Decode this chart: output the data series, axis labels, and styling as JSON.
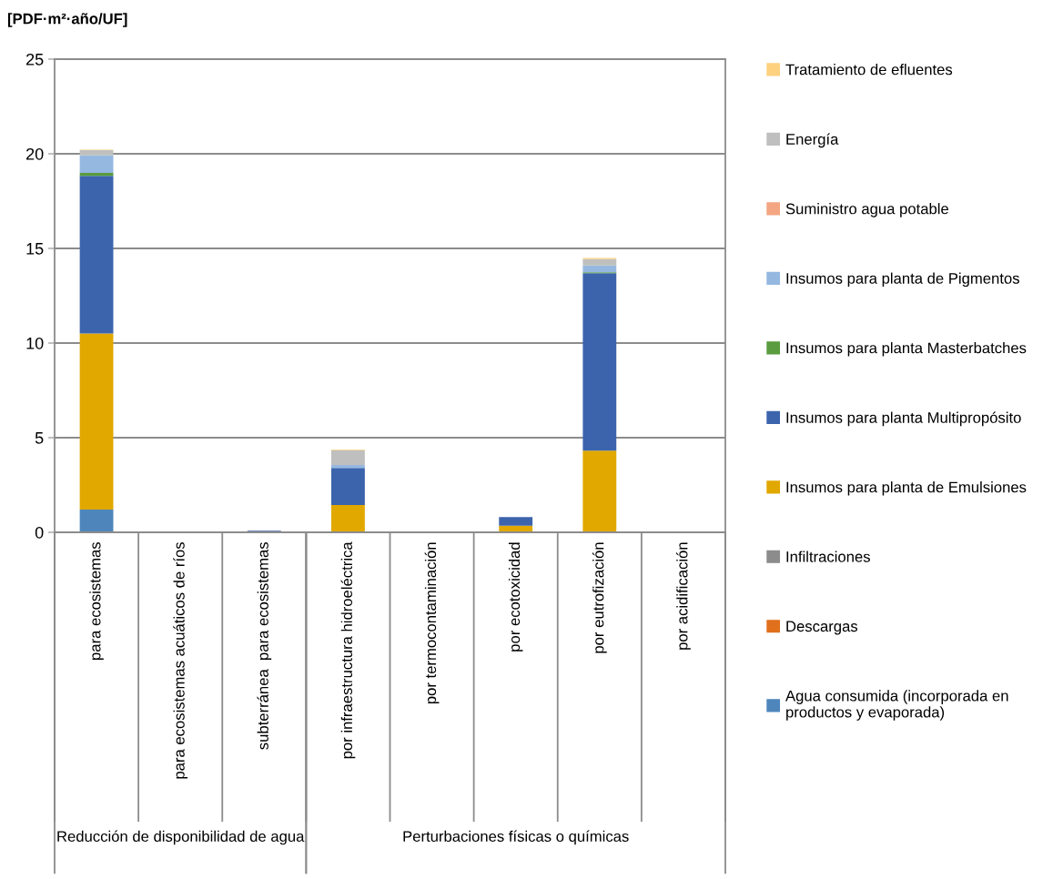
{
  "chart_data": {
    "type": "bar",
    "stacked": true,
    "ylabel": "[PDF·m²·año/UF]",
    "categories": [
      "para ecosistemas",
      "para ecosistemas acuáticos de ríos",
      "subterránea  para ecosistemas",
      "por infraestructura hidroeléctrica",
      "por termocontaminación",
      "por ecotoxicidad",
      "por eutrofización",
      "por acidificación"
    ],
    "annotations": [
      "Reducción de disponibilidad de agua",
      "Perturbaciones físicas o químicas"
    ],
    "series": [
      {
        "name": "Agua consumida (incorporada en productos y evaporada)",
        "color": "#4e86bc",
        "values": [
          1.2,
          0,
          0,
          0,
          0,
          0,
          0,
          0
        ]
      },
      {
        "name": "Descargas",
        "color": "#e0701c",
        "values": [
          0,
          0,
          0,
          0,
          0,
          0,
          0.03,
          0
        ]
      },
      {
        "name": "Infiltraciones",
        "color": "#8c8c8c",
        "values": [
          0,
          0,
          0,
          0,
          0,
          0,
          0,
          0
        ]
      },
      {
        "name": "Insumos para planta de Emulsiones",
        "color": "#e1a800",
        "values": [
          9.3,
          null,
          null,
          1.44,
          0,
          0.35,
          4.28,
          null
        ]
      },
      {
        "name": "Insumos para planta Multipropósito",
        "color": "#3c64ad",
        "values": [
          8.33,
          0,
          0.08,
          1.96,
          0,
          0.45,
          9.38,
          0
        ]
      },
      {
        "name": "Insumos para planta Masterbatches",
        "color": "#5a9c3f",
        "values": [
          0.16,
          0,
          0,
          0,
          0,
          0,
          0.05,
          0
        ]
      },
      {
        "name": "Insumos para planta de Pigmentos",
        "color": "#95b8e0",
        "values": [
          0.93,
          0,
          null,
          0.16,
          0,
          null,
          0.36,
          0
        ]
      },
      {
        "name": "Suministro agua potable",
        "color": "#f4a582",
        "values": [
          0,
          0,
          0,
          0,
          0,
          0,
          0,
          0
        ]
      },
      {
        "name": "Energía",
        "color": "#bfbfbf",
        "values": [
          0.27,
          0,
          0,
          0.78,
          0,
          0,
          0.34,
          0
        ]
      },
      {
        "name": "Tratamiento de efluentes",
        "color": "#fdd17f",
        "values": [
          0.03,
          0,
          0,
          0.03,
          0,
          0,
          0.06,
          0
        ]
      }
    ],
    "ylim": [
      0,
      25
    ],
    "yticks": [
      0,
      5,
      10,
      15,
      20,
      25
    ],
    "grid": "y",
    "legend": "right"
  }
}
